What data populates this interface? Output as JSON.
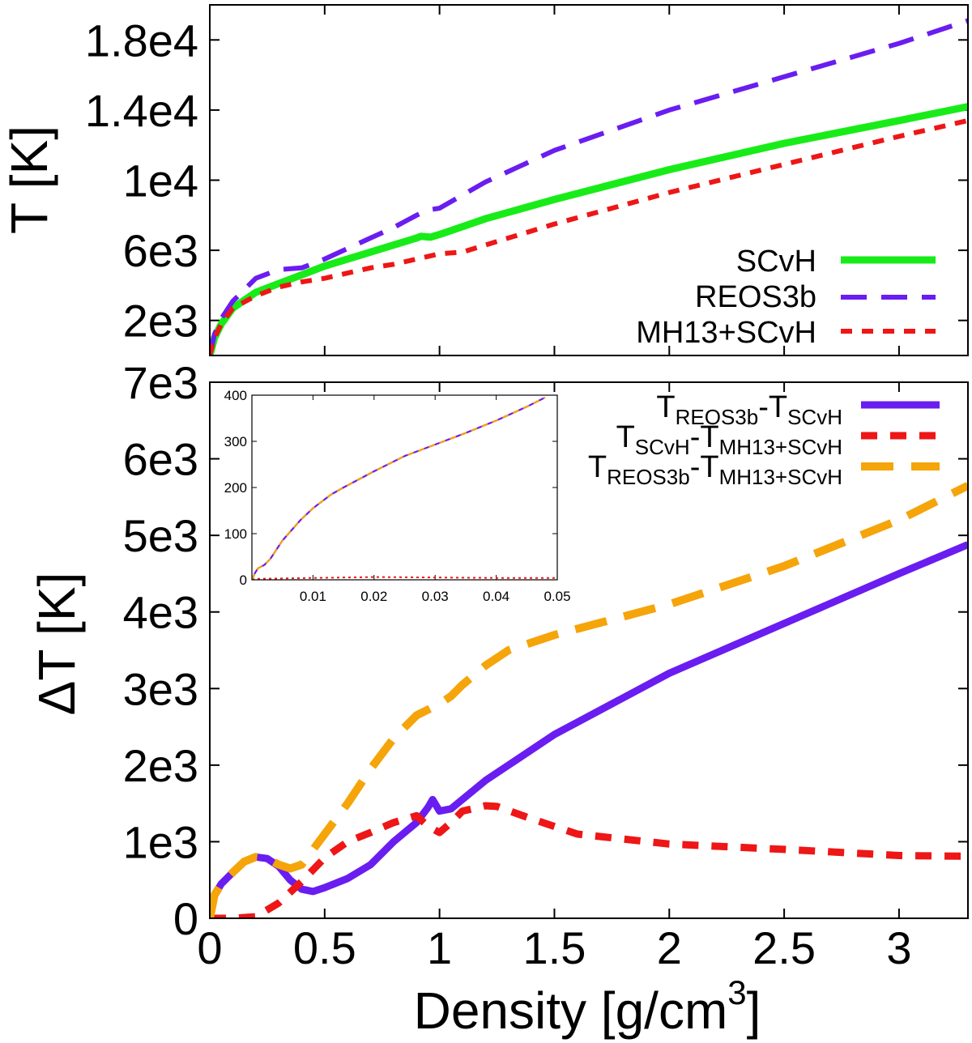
{
  "colors": {
    "scvh": "#18ec18",
    "reos3b": "#6a1df0",
    "mh13": "#ee1616",
    "diff_reos_scvh": "#6a1df0",
    "diff_scvh_mh13": "#ee1616",
    "diff_reos_mh13": "#f5a40a"
  },
  "xlabel": "Density [g/cm",
  "xlabel_sup": "3",
  "xlabel_close": "]",
  "chart_data": [
    {
      "id": "top",
      "type": "line",
      "xlabel": "Density [g/cm3]",
      "ylabel": "T [K]",
      "xlim": [
        0,
        3.3
      ],
      "ylim": [
        0,
        20000
      ],
      "xticks": [
        0,
        0.5,
        1,
        1.5,
        2,
        2.5,
        3
      ],
      "yticks": [
        2000,
        6000,
        10000,
        14000,
        18000
      ],
      "ytick_labels": [
        "2e3",
        "6e3",
        "1e4",
        "1.4e4",
        "1.8e4"
      ],
      "series": [
        {
          "name": "SCvH",
          "label": "SCvH",
          "style": "solid",
          "x": [
            0,
            0.02,
            0.05,
            0.1,
            0.2,
            0.3,
            0.4,
            0.5,
            0.6,
            0.7,
            0.8,
            0.9,
            0.92,
            0.96,
            1.0,
            1.2,
            1.5,
            2.0,
            2.5,
            3.0,
            3.3
          ],
          "y": [
            0,
            1000,
            1800,
            2700,
            3600,
            4100,
            4600,
            5100,
            5500,
            5900,
            6300,
            6700,
            6800,
            6750,
            6900,
            7800,
            8900,
            10600,
            12100,
            13400,
            14200
          ]
        },
        {
          "name": "REOS3b",
          "label": "REOS3b",
          "style": "dashed",
          "x": [
            0,
            0.02,
            0.05,
            0.1,
            0.2,
            0.3,
            0.4,
            0.5,
            0.6,
            0.7,
            0.8,
            0.9,
            0.95,
            1.0,
            1.2,
            1.5,
            2.0,
            2.5,
            3.0,
            3.3
          ],
          "y": [
            0,
            1200,
            2100,
            3100,
            4400,
            4900,
            5000,
            5500,
            6100,
            6700,
            7300,
            8000,
            8300,
            8400,
            9900,
            11700,
            14000,
            15900,
            17800,
            19100
          ]
        },
        {
          "name": "MH13+SCvH",
          "label": "MH13+SCvH",
          "style": "dotted",
          "x": [
            0,
            0.02,
            0.05,
            0.1,
            0.2,
            0.3,
            0.4,
            0.5,
            0.6,
            0.7,
            0.8,
            0.9,
            1.0,
            1.1,
            1.2,
            1.5,
            2.0,
            2.5,
            3.0,
            3.3
          ],
          "y": [
            0,
            1000,
            1800,
            2700,
            3400,
            3900,
            4200,
            4400,
            4700,
            5000,
            5200,
            5500,
            5800,
            5900,
            6300,
            7500,
            9300,
            10900,
            12500,
            13400
          ]
        }
      ]
    },
    {
      "id": "bottom",
      "type": "line",
      "xlabel": "Density [g/cm3]",
      "ylabel": "ΔT [K]",
      "xlim": [
        0,
        3.3
      ],
      "ylim": [
        0,
        7000
      ],
      "xticks": [
        0,
        0.5,
        1,
        1.5,
        2,
        2.5,
        3
      ],
      "xtick_labels": [
        "0",
        "0.5",
        "1",
        "1.5",
        "2",
        "2.5",
        "3"
      ],
      "yticks": [
        0,
        1000,
        2000,
        3000,
        4000,
        5000,
        6000,
        7000
      ],
      "ytick_labels": [
        "0",
        "1e3",
        "2e3",
        "3e3",
        "4e3",
        "5e3",
        "6e3",
        "7e3"
      ],
      "series": [
        {
          "name": "TREOS3b-TSCvH",
          "label_parts": [
            [
              "T",
              "REOS3b"
            ],
            [
              "-T",
              "SCvH"
            ]
          ],
          "style": "solid",
          "x": [
            0,
            0.02,
            0.05,
            0.1,
            0.15,
            0.2,
            0.25,
            0.3,
            0.35,
            0.4,
            0.45,
            0.5,
            0.6,
            0.7,
            0.8,
            0.9,
            0.95,
            0.97,
            1.0,
            1.05,
            1.2,
            1.5,
            2.0,
            2.5,
            3.0,
            3.3
          ],
          "y": [
            0,
            300,
            450,
            600,
            740,
            800,
            780,
            680,
            500,
            380,
            350,
            400,
            520,
            700,
            1000,
            1250,
            1450,
            1550,
            1400,
            1430,
            1800,
            2400,
            3200,
            3850,
            4500,
            4880
          ]
        },
        {
          "name": "TSCvH-TMH13+SCvH",
          "label_parts": [
            [
              "T",
              "SCvH"
            ],
            [
              "-T",
              "MH13+SCvH"
            ]
          ],
          "style": "dotted",
          "x": [
            0,
            0.1,
            0.2,
            0.3,
            0.4,
            0.5,
            0.6,
            0.7,
            0.8,
            0.9,
            0.95,
            1.0,
            1.05,
            1.1,
            1.2,
            1.25,
            1.4,
            1.6,
            2.0,
            2.5,
            3.0,
            3.3
          ],
          "y": [
            0,
            0,
            20,
            200,
            480,
            790,
            1000,
            1120,
            1250,
            1340,
            1200,
            1120,
            1250,
            1400,
            1470,
            1460,
            1300,
            1100,
            970,
            900,
            820,
            810
          ]
        },
        {
          "name": "TREOS3b-TMH13+SCvH",
          "label_parts": [
            [
              "T",
              "REOS3b"
            ],
            [
              "-T",
              "MH13+SCvH"
            ]
          ],
          "style": "dashed",
          "x": [
            0,
            0.02,
            0.05,
            0.1,
            0.15,
            0.2,
            0.25,
            0.3,
            0.35,
            0.4,
            0.5,
            0.6,
            0.7,
            0.8,
            0.9,
            1.0,
            1.05,
            1.1,
            1.2,
            1.3,
            1.5,
            2.0,
            2.5,
            3.0,
            3.3
          ],
          "y": [
            0,
            300,
            450,
            600,
            740,
            800,
            780,
            700,
            650,
            700,
            1100,
            1500,
            1950,
            2350,
            2650,
            2800,
            2900,
            3050,
            3300,
            3500,
            3700,
            4100,
            4600,
            5200,
            5650
          ]
        }
      ]
    },
    {
      "id": "inset",
      "type": "line",
      "xlim": [
        0,
        0.05
      ],
      "ylim": [
        0,
        400
      ],
      "xticks": [
        0.01,
        0.02,
        0.03,
        0.04,
        0.05
      ],
      "xtick_labels": [
        "0.01",
        "0.02",
        "0.03",
        "0.04",
        "0.05"
      ],
      "yticks": [
        0,
        100,
        200,
        300,
        400
      ],
      "ytick_labels": [
        "0",
        "100",
        "200",
        "300",
        "400"
      ],
      "series": [
        {
          "name": "TREOS3b-TSCvH",
          "style": "solid",
          "x": [
            0,
            0.0005,
            0.001,
            0.002,
            0.003,
            0.005,
            0.008,
            0.01,
            0.013,
            0.015,
            0.02,
            0.025,
            0.03,
            0.035,
            0.04,
            0.045,
            0.048
          ],
          "y": [
            0,
            15,
            25,
            32,
            45,
            85,
            130,
            155,
            185,
            200,
            235,
            268,
            293,
            318,
            345,
            375,
            395
          ]
        },
        {
          "name": "TSCvH-TMH13+SCvH",
          "style": "dotted",
          "x": [
            0,
            0.01,
            0.02,
            0.03,
            0.04,
            0.05
          ],
          "y": [
            2,
            4,
            6,
            5,
            4,
            4
          ]
        },
        {
          "name": "TREOS3b-TMH13+SCvH",
          "style": "dashed",
          "x": [
            0,
            0.0005,
            0.001,
            0.002,
            0.003,
            0.005,
            0.008,
            0.01,
            0.013,
            0.015,
            0.02,
            0.025,
            0.03,
            0.035,
            0.04,
            0.045,
            0.048
          ],
          "y": [
            0,
            15,
            25,
            32,
            45,
            85,
            130,
            155,
            185,
            200,
            235,
            268,
            293,
            318,
            345,
            375,
            395
          ]
        }
      ]
    }
  ]
}
